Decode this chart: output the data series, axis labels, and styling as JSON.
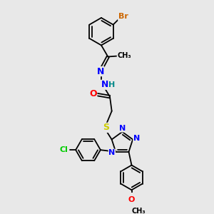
{
  "bg_color": "#e8e8e8",
  "bond_color": "#000000",
  "atom_colors": {
    "Br": "#cc6600",
    "Cl": "#00cc00",
    "N": "#0000ff",
    "O": "#ff0000",
    "S": "#cccc00",
    "H": "#008888",
    "C": "#000000"
  },
  "font_size": 8,
  "lw": 1.3
}
